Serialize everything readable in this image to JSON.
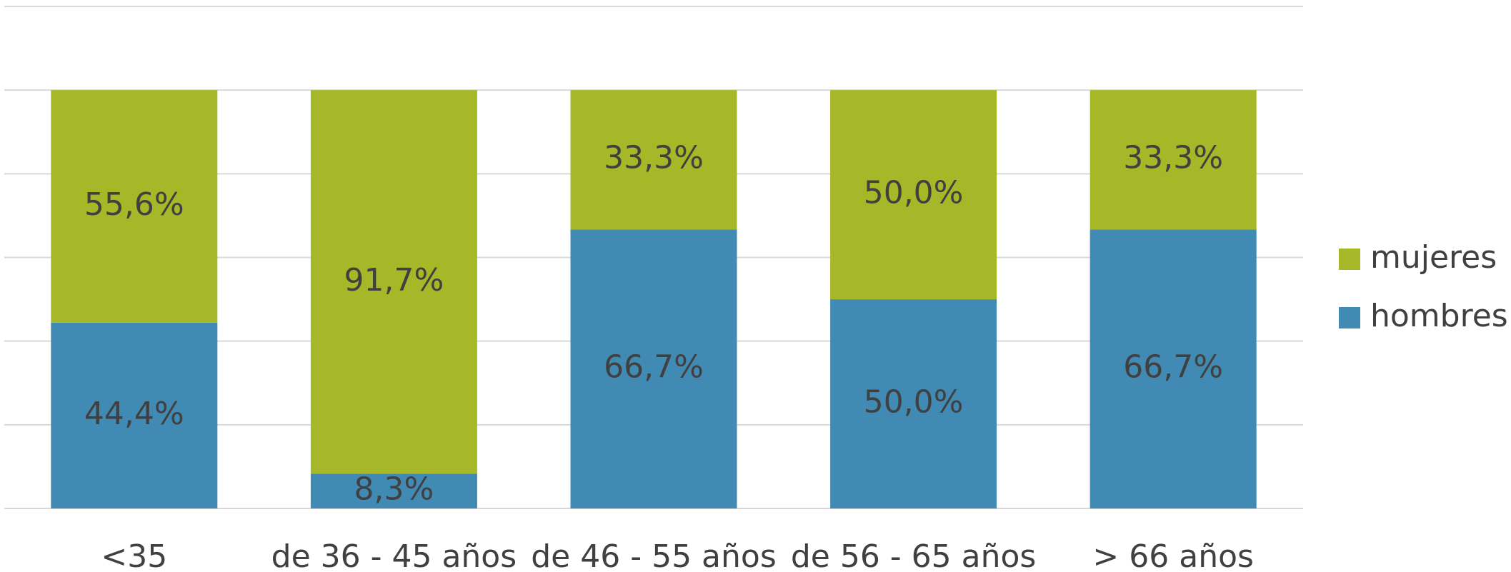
{
  "chart_data": {
    "type": "stacked_bar",
    "categories": [
      "<35",
      "de 36 - 45 años",
      "de 46 - 55 años",
      "de 56 - 65 años",
      "> 66 años"
    ],
    "series": [
      {
        "name": "hombres",
        "color": "#418ab3",
        "values": [
          44.4,
          8.3,
          66.7,
          50.0,
          66.7
        ],
        "value_labels": [
          "44,4%",
          "8,3%",
          "66,7%",
          "50,0%",
          "66,7%"
        ]
      },
      {
        "name": "mujeres",
        "color": "#a6b727",
        "values": [
          55.6,
          91.7,
          33.3,
          50.0,
          33.3
        ],
        "value_labels": [
          "55,6%",
          "91,7%",
          "33,3%",
          "50,0%",
          "33,3%"
        ]
      }
    ],
    "ylim": [
      0,
      120
    ],
    "yticks": [
      0,
      20,
      40,
      60,
      80,
      100,
      120
    ],
    "grid": true,
    "legend": "right"
  }
}
